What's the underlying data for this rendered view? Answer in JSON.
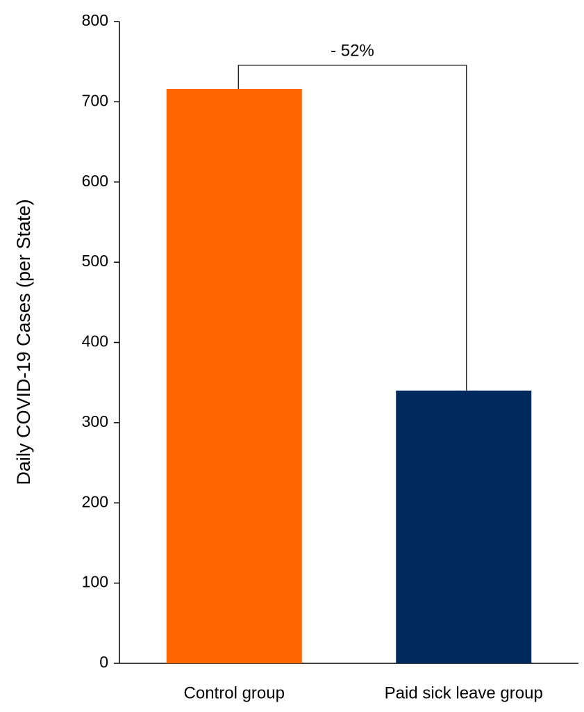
{
  "chart_data": {
    "type": "bar",
    "y_label": "Daily COVID-19 Cases (per State)",
    "categories": [
      "Control group",
      "Paid sick leave group"
    ],
    "values": [
      716,
      340
    ],
    "colors": [
      "#ff6600",
      "#002a5c"
    ],
    "annotation": "- 52%",
    "ylim": [
      0,
      800
    ],
    "yticks": [
      0,
      100,
      200,
      300,
      400,
      500,
      600,
      700,
      800
    ],
    "grid": false
  }
}
